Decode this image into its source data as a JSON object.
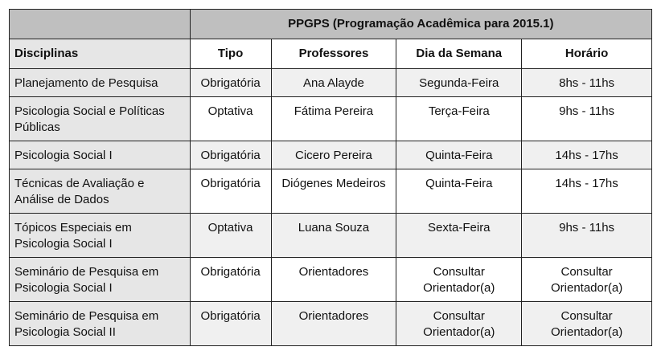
{
  "title": "PPGPS (Programação Acadêmica para 2015.1)",
  "headers": [
    "Disciplinas",
    "Tipo",
    "Professores",
    "Dia da Semana",
    "Horário"
  ],
  "rows": [
    [
      "Planejamento de Pesquisa",
      "Obrigatória",
      "Ana Alayde",
      "Segunda-Feira",
      "8hs - 11hs"
    ],
    [
      "Psicologia Social e Políticas Públicas",
      "Optativa",
      "Fátima Pereira",
      "Terça-Feira",
      "9hs - 11hs"
    ],
    [
      "Psicologia Social I",
      "Obrigatória",
      "Cicero Pereira",
      "Quinta-Feira",
      "14hs - 17hs"
    ],
    [
      "Técnicas de Avaliação e Análise de Dados",
      "Obrigatória",
      "Diógenes Medeiros",
      "Quinta-Feira",
      "14hs - 17hs"
    ],
    [
      "Tópicos Especiais em Psicologia Social I",
      "Optativa",
      "Luana Souza",
      "Sexta-Feira",
      "9hs - 11hs"
    ],
    [
      "Seminário de Pesquisa em Psicologia Social I",
      "Obrigatória",
      "Orientadores",
      "Consultar Orientador(a)",
      "Consultar Orientador(a)"
    ],
    [
      "Seminário de Pesquisa em Psicologia Social II",
      "Obrigatória",
      "Orientadores",
      "Consultar Orientador(a)",
      "Consultar Orientador(a)"
    ]
  ]
}
